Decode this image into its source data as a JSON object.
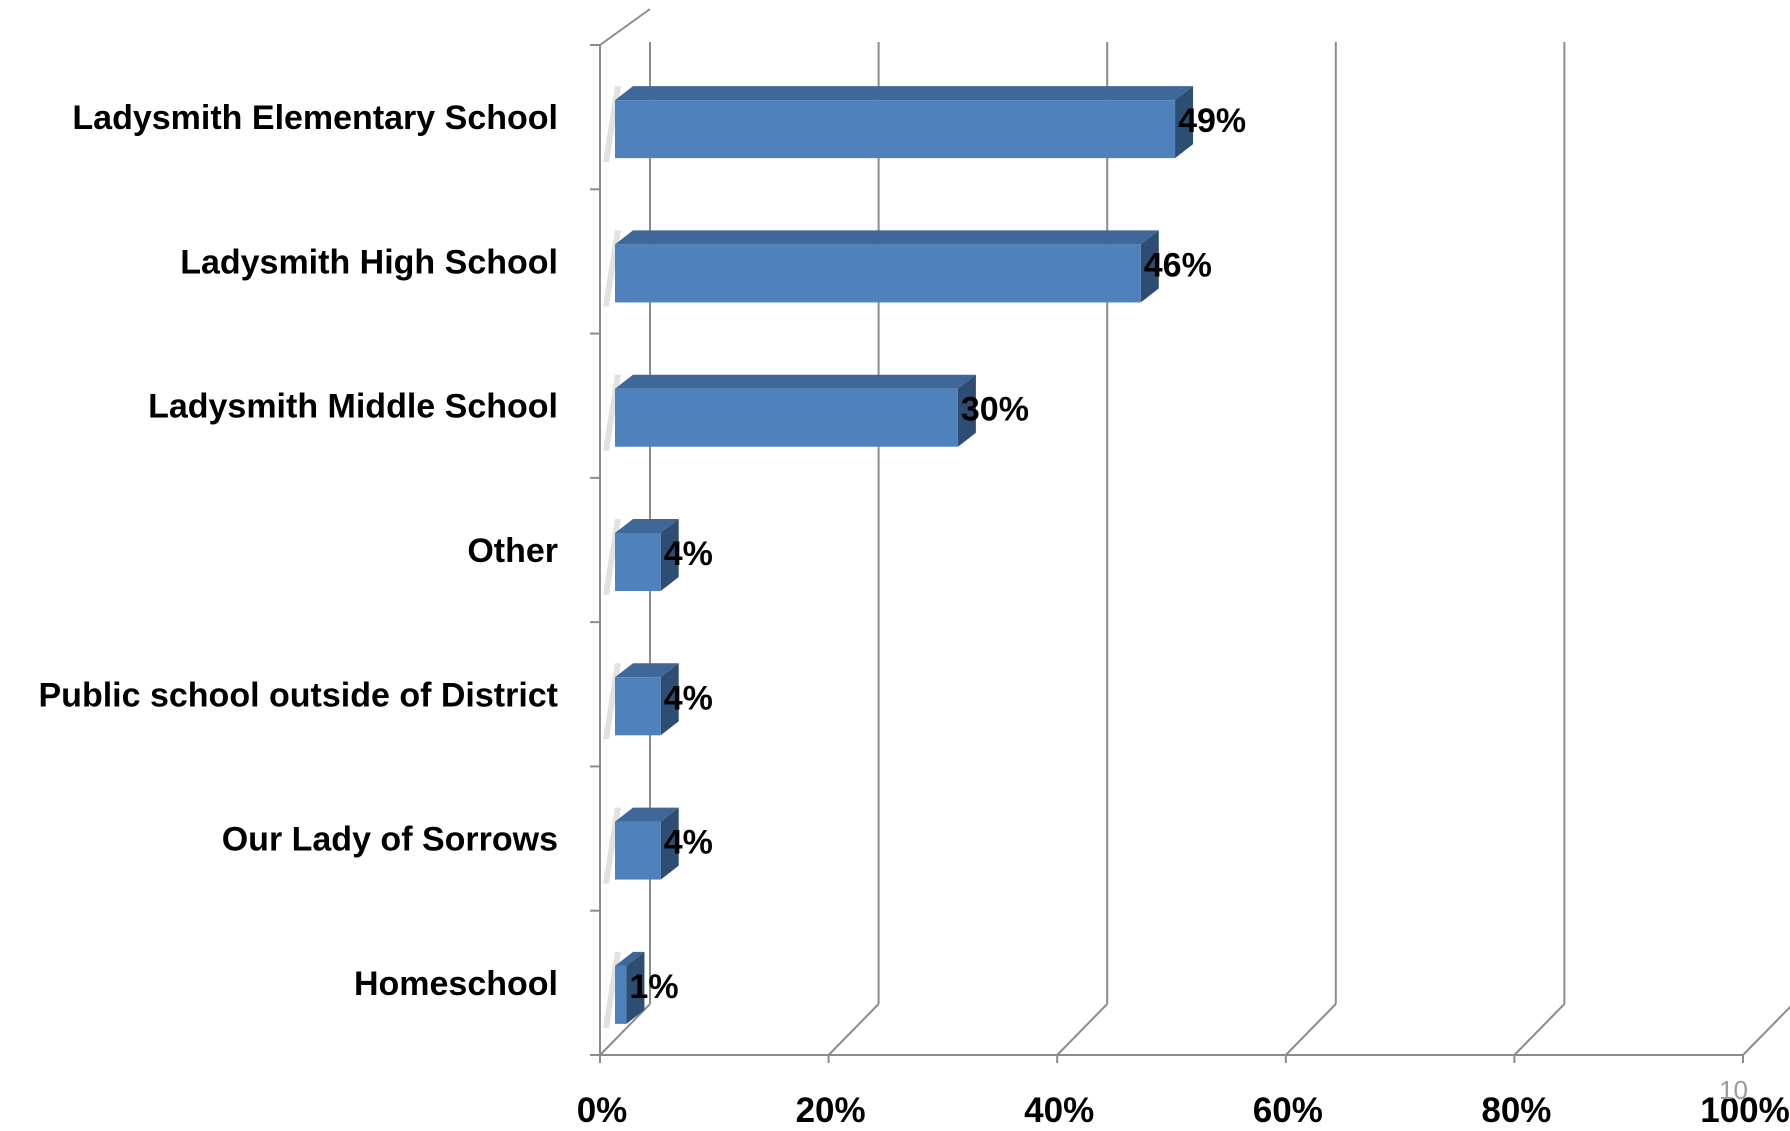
{
  "chart_data": {
    "type": "bar",
    "orientation": "horizontal",
    "style": "3d",
    "categories": [
      "Ladysmith Elementary School",
      "Ladysmith High School",
      "Ladysmith Middle School",
      "Other",
      "Public school outside of District",
      "Our Lady of Sorrows",
      "Homeschool"
    ],
    "values": [
      49,
      46,
      30,
      4,
      4,
      4,
      1
    ],
    "data_labels": [
      "49%",
      "46%",
      "30%",
      "4%",
      "4%",
      "4%",
      "1%"
    ],
    "xlim": [
      0,
      100
    ],
    "x_ticks": [
      0,
      20,
      40,
      60,
      80,
      100
    ],
    "x_tick_labels": [
      "0%",
      "20%",
      "40%",
      "60%",
      "80%",
      "100%"
    ],
    "title": "",
    "xlabel": "",
    "ylabel": "",
    "grid": true,
    "legend": "none",
    "colors": {
      "bar_front": "#4F81BD",
      "bar_top": "#3F6797",
      "bar_side": "#2E4D73",
      "grid": "#8C8C8C"
    }
  },
  "page_number": "10"
}
